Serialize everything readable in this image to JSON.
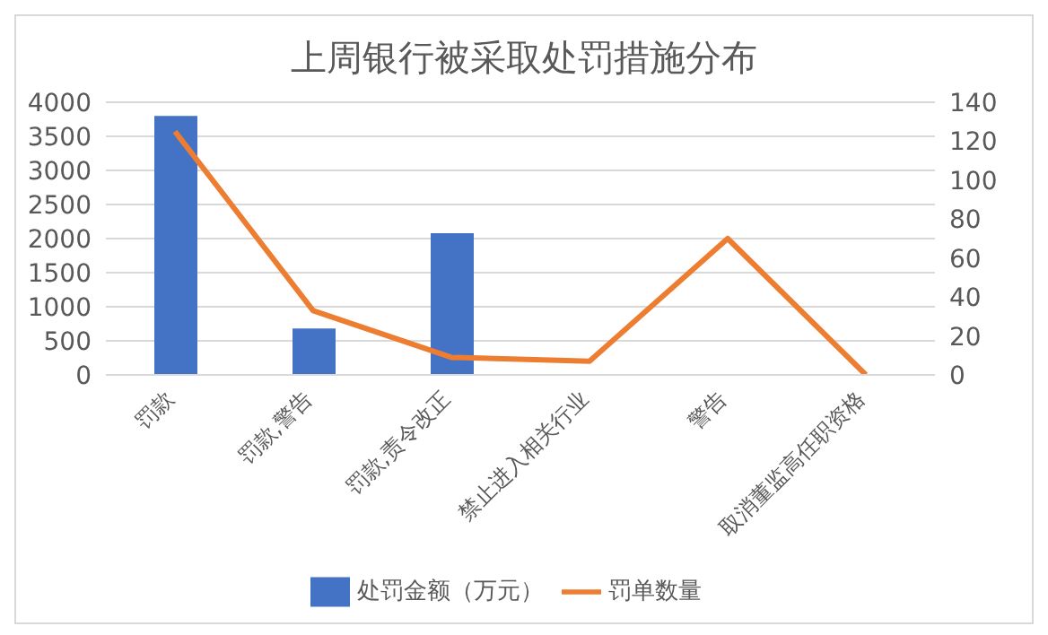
{
  "chart_data": {
    "type": "bar",
    "title": "上周银行被采取处罚措施分布",
    "categories": [
      "罚款",
      "罚款,警告",
      "罚款,责令改正",
      "禁止进入相关行业",
      "警告",
      "取消董监高任职资格"
    ],
    "series": [
      {
        "name": "处罚金额（万元）",
        "color": "#4472c4",
        "values": [
          3800,
          680,
          2080,
          null,
          null,
          null
        ]
      },
      {
        "name": "罚单数量",
        "type": "line",
        "axis": "y2",
        "color": "#ed7d31",
        "values": [
          125,
          33,
          9,
          7,
          70,
          0
        ]
      }
    ],
    "ylim": [
      0,
      4000
    ],
    "yticks": [
      0,
      500,
      1000,
      1500,
      2000,
      2500,
      3000,
      3500,
      4000
    ],
    "y2lim": [
      0,
      140
    ],
    "y2ticks": [
      0,
      20,
      40,
      60,
      80,
      100,
      120,
      140
    ],
    "grid": "y",
    "legend": "bottom",
    "marker": "none"
  }
}
